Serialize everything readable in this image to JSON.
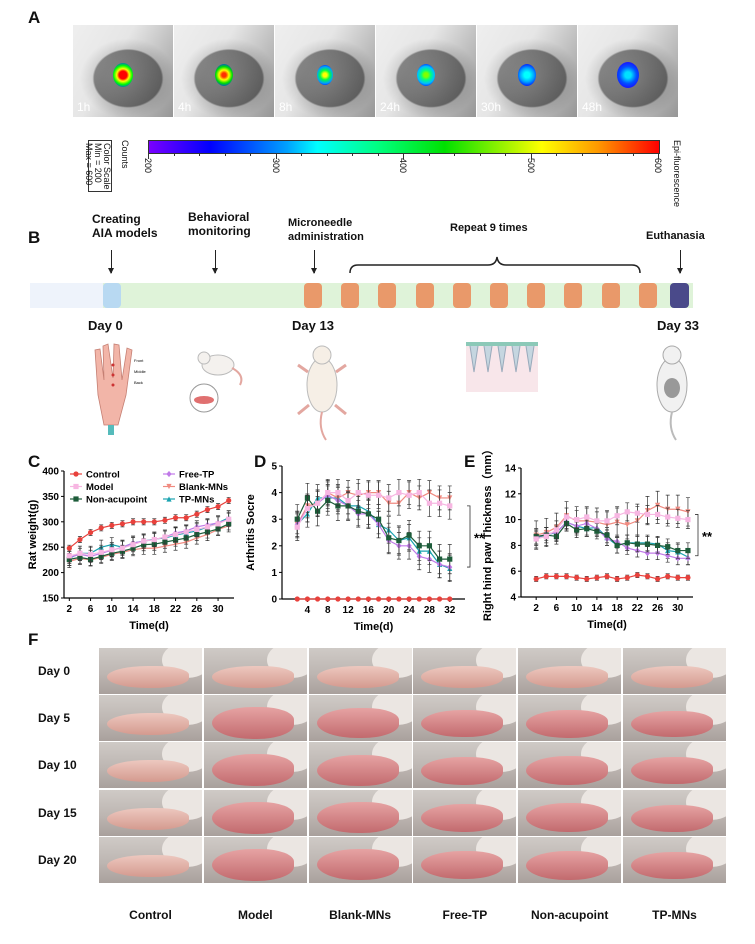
{
  "panels": {
    "A": "A",
    "B": "B",
    "C": "C",
    "D": "D",
    "E": "E",
    "F": "F"
  },
  "panel_a": {
    "timepoints": [
      "1h",
      "4h",
      "8h",
      "24h",
      "30h",
      "48h"
    ],
    "color_scale_box": [
      "Color Scale",
      "Min = 200",
      "Max = 600"
    ],
    "counts_label": "Counts",
    "scale_ticks": [
      "200",
      "300",
      "400",
      "500",
      "600"
    ],
    "scale_title": "Epi-fluorescence"
  },
  "panel_b": {
    "events": [
      "Creating AIA models",
      "Behavioral monitoring",
      "Microneedle administration",
      "Repeat 9 times",
      "Euthanasia"
    ],
    "events_lines": [
      [
        "Creating",
        "AIA models"
      ],
      [
        "Behavioral",
        "monitoring"
      ],
      [
        "Microneedle",
        "administration"
      ]
    ],
    "days": [
      "Day 0",
      "Day 13",
      "Day 33"
    ],
    "hand_labels": [
      "Front",
      "Middle",
      "Back"
    ],
    "colors": {
      "pre": "#eef3fb",
      "model": "#b8d9f2",
      "monitor": "#dff3d9",
      "dose": "#e9996a",
      "end": "#4a4a8a"
    }
  },
  "legend": [
    {
      "name": "Control",
      "color": "#e8413c",
      "marker": "circle"
    },
    {
      "name": "Model",
      "color": "#f7b6e2",
      "marker": "square"
    },
    {
      "name": "Non-acupoint",
      "color": "#1d5c3a",
      "marker": "square"
    },
    {
      "name": "Free-TP",
      "color": "#c07ae8",
      "marker": "diamond"
    },
    {
      "name": "Blank-MNs",
      "color": "#f08a80",
      "marker": "tri-down"
    },
    {
      "name": "TP-MNs",
      "color": "#1aa3b0",
      "marker": "tri-up"
    }
  ],
  "chart_data": [
    {
      "type": "line",
      "id": "C",
      "title": "",
      "xlabel": "Time(d)",
      "ylabel": "Rat weight(g)",
      "xlim": [
        1,
        33
      ],
      "ylim": [
        150,
        400
      ],
      "xticks": [
        2,
        6,
        10,
        14,
        18,
        22,
        26,
        30
      ],
      "yticks": [
        150,
        200,
        250,
        300,
        350,
        400
      ],
      "legend": "top-left",
      "x": [
        2,
        4,
        6,
        8,
        10,
        12,
        14,
        16,
        18,
        20,
        22,
        24,
        26,
        28,
        30,
        32
      ],
      "series": [
        {
          "name": "Control",
          "values": [
            248,
            265,
            279,
            288,
            293,
            296,
            300,
            300,
            300,
            303,
            308,
            308,
            315,
            324,
            330,
            342
          ],
          "err": 6
        },
        {
          "name": "Model",
          "values": [
            233,
            238,
            236,
            240,
            245,
            248,
            255,
            262,
            265,
            270,
            275,
            280,
            285,
            290,
            296,
            305
          ],
          "err": 14
        },
        {
          "name": "Non-acupoint",
          "values": [
            226,
            230,
            226,
            232,
            238,
            242,
            248,
            255,
            256,
            260,
            264,
            268,
            275,
            280,
            286,
            296
          ],
          "err": 12
        },
        {
          "name": "Free-TP",
          "values": [
            230,
            236,
            232,
            238,
            244,
            250,
            258,
            262,
            265,
            270,
            278,
            282,
            290,
            294,
            298,
            305
          ],
          "err": 12
        },
        {
          "name": "Blank-MNs",
          "values": [
            222,
            228,
            225,
            230,
            236,
            240,
            245,
            248,
            248,
            252,
            256,
            260,
            268,
            275,
            285,
            292
          ],
          "err": 12
        },
        {
          "name": "TP-MNs",
          "values": [
            228,
            238,
            238,
            250,
            255,
            250,
            258,
            262,
            266,
            268,
            274,
            278,
            282,
            290,
            298,
            308
          ],
          "err": 14
        }
      ]
    },
    {
      "type": "line",
      "id": "D",
      "title": "",
      "xlabel": "Time(d)",
      "ylabel": "Arthritis Socre",
      "xlim": [
        -1,
        35
      ],
      "ylim": [
        0,
        5
      ],
      "xticks": [
        4,
        8,
        12,
        16,
        20,
        24,
        28,
        32
      ],
      "yticks": [
        0,
        1,
        2,
        3,
        4,
        5
      ],
      "annotation": "**",
      "x": [
        2,
        4,
        6,
        8,
        10,
        12,
        14,
        16,
        18,
        20,
        22,
        24,
        26,
        28,
        30,
        32
      ],
      "series": [
        {
          "name": "Control",
          "values": [
            0,
            0,
            0,
            0,
            0,
            0,
            0,
            0,
            0,
            0,
            0,
            0,
            0,
            0,
            0,
            0
          ],
          "err": 0
        },
        {
          "name": "Model",
          "values": [
            2.7,
            3.4,
            3.6,
            4.0,
            4.0,
            3.7,
            4.0,
            3.9,
            3.9,
            3.8,
            4.0,
            3.9,
            4.0,
            3.6,
            3.6,
            3.5
          ],
          "err": 0.5
        },
        {
          "name": "Non-acupoint",
          "values": [
            3.0,
            3.8,
            3.3,
            3.7,
            3.5,
            3.5,
            3.3,
            3.2,
            3.0,
            2.3,
            2.2,
            2.4,
            2.0,
            2.0,
            1.5,
            1.5
          ],
          "err": 0.55
        },
        {
          "name": "Free-TP",
          "values": [
            2.8,
            3.4,
            3.6,
            3.9,
            3.7,
            3.5,
            3.2,
            3.2,
            2.8,
            2.2,
            2.0,
            2.0,
            1.6,
            1.5,
            1.3,
            1.2
          ],
          "err": 0.5
        },
        {
          "name": "Blank-MNs",
          "values": [
            2.8,
            3.5,
            3.6,
            4.0,
            3.8,
            4.0,
            3.9,
            4.0,
            4.0,
            3.6,
            3.6,
            4.0,
            3.8,
            4.0,
            3.8,
            3.8
          ],
          "err": 0.45
        },
        {
          "name": "TP-MNs",
          "values": [
            2.8,
            3.2,
            3.8,
            3.8,
            3.8,
            3.5,
            3.5,
            3.3,
            2.8,
            2.6,
            2.2,
            2.3,
            1.8,
            1.8,
            1.3,
            1.15
          ],
          "err": 0.5
        }
      ]
    },
    {
      "type": "line",
      "id": "E",
      "title": "",
      "xlabel": "Time(d)",
      "ylabel": "Right hind paw Thickness（mm）",
      "xlim": [
        -1,
        33
      ],
      "ylim": [
        4,
        14
      ],
      "xticks": [
        2,
        6,
        10,
        14,
        18,
        22,
        26,
        30
      ],
      "yticks": [
        4,
        6,
        8,
        10,
        12,
        14
      ],
      "annotation": "**",
      "x": [
        2,
        4,
        6,
        8,
        10,
        12,
        14,
        16,
        18,
        20,
        22,
        24,
        26,
        28,
        30,
        32
      ],
      "series": [
        {
          "name": "Control",
          "values": [
            5.4,
            5.6,
            5.6,
            5.6,
            5.5,
            5.4,
            5.5,
            5.6,
            5.4,
            5.5,
            5.7,
            5.6,
            5.4,
            5.6,
            5.5,
            5.5
          ],
          "err": 0.2
        },
        {
          "name": "Model",
          "values": [
            8.5,
            8.7,
            9.2,
            10.2,
            10.0,
            10.2,
            9.9,
            9.9,
            10.3,
            10.6,
            10.5,
            10.4,
            10.4,
            10.2,
            10.1,
            10.0
          ],
          "err": 0.7
        },
        {
          "name": "Non-acupoint",
          "values": [
            8.7,
            8.8,
            8.7,
            9.7,
            9.2,
            9.3,
            9.1,
            8.8,
            8.0,
            8.2,
            8.1,
            8.1,
            8.0,
            7.9,
            7.6,
            7.6
          ],
          "err": 0.6
        },
        {
          "name": "Free-TP",
          "values": [
            8.6,
            8.9,
            9.0,
            9.8,
            9.5,
            9.7,
            9.3,
            8.5,
            8.3,
            7.8,
            7.6,
            7.4,
            7.4,
            7.2,
            7.0,
            7.0
          ],
          "err": 0.5
        },
        {
          "name": "Blank-MNs",
          "values": [
            8.8,
            9.0,
            9.4,
            10.3,
            9.9,
            9.9,
            9.8,
            9.6,
            9.8,
            9.6,
            9.9,
            10.7,
            11.1,
            10.8,
            10.8,
            10.6
          ],
          "err": 1.1
        },
        {
          "name": "TP-MNs",
          "values": [
            8.6,
            8.8,
            9.0,
            9.8,
            9.5,
            9.3,
            9.4,
            8.6,
            8.0,
            8.2,
            8.2,
            8.2,
            8.1,
            7.6,
            7.5,
            7.1
          ],
          "err": 0.6
        }
      ]
    }
  ],
  "panel_f": {
    "rows": [
      "Day 0",
      "Day 5",
      "Day 10",
      "Day 15",
      "Day 20"
    ],
    "columns": [
      "Control",
      "Model",
      "Blank-MNs",
      "Free-TP",
      "Non-acupoint",
      "TP-MNs"
    ]
  }
}
